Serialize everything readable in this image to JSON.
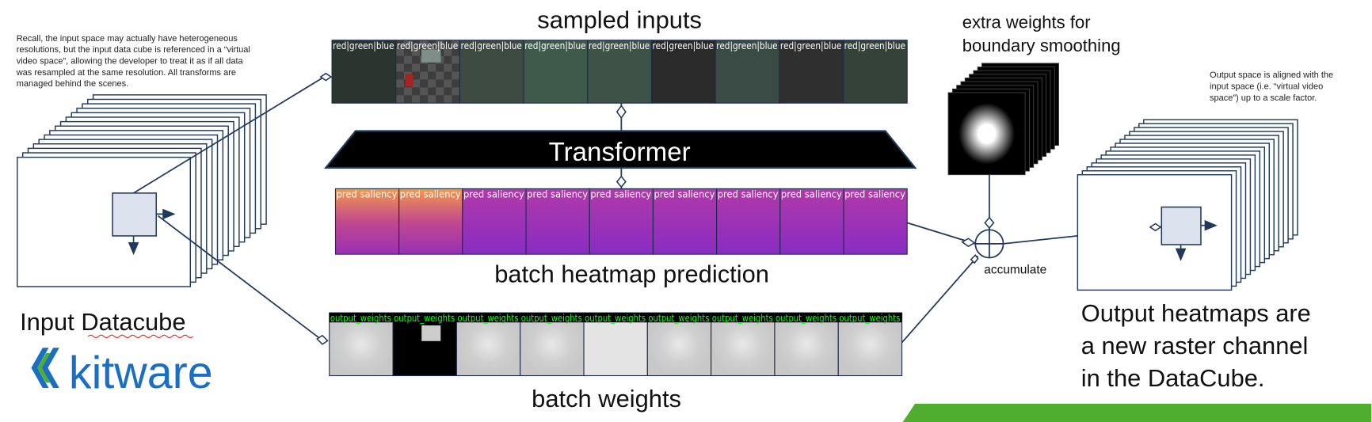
{
  "sampled_inputs": {
    "title": "sampled inputs",
    "tile_labels": [
      "red|green|blue",
      "red|green|blue",
      "red|green|blue",
      "red|green|blue",
      "red|green|blue",
      "red|green|blue",
      "red|green|blue",
      "red|green|blue",
      "red|green|blue"
    ]
  },
  "transformer": {
    "label": "Transformer"
  },
  "heatmap": {
    "title": "batch heatmap prediction",
    "tile_labels": [
      "pred saliency",
      "pred saliency",
      "pred saliency",
      "pred saliency",
      "pred saliency",
      "pred saliency",
      "pred saliency",
      "pred saliency",
      "pred saliency"
    ]
  },
  "weights": {
    "title": "batch weights",
    "tile_labels": [
      "output_weights",
      "output_weights",
      "output_weights",
      "output_weights",
      "output_weights",
      "output_weights",
      "output_weights",
      "output_weights",
      "output_weights"
    ]
  },
  "input_note": {
    "lines": [
      "Recall, the input space may actually have heterogeneous",
      "resolutions, but the input data cube is referenced in a “virtual",
      "video space”, allowing the developer to treat it as if all data",
      "was resampled at the same resolution. All transforms are",
      "managed behind the scenes."
    ]
  },
  "input_cube": {
    "label": "Input Datacube"
  },
  "logo": {
    "text": "kitware"
  },
  "extra_weights": {
    "lines": [
      "extra weights for",
      "boundary smoothing"
    ]
  },
  "accumulate": {
    "label": "accumulate"
  },
  "output_note": {
    "lines": [
      "Output space is aligned with the",
      "input space (i.e. “virtual video",
      "space”) up to a scale factor."
    ]
  },
  "output_text": {
    "lines": [
      "Output heatmaps are",
      "a new raster channel",
      "in the DataCube."
    ]
  }
}
